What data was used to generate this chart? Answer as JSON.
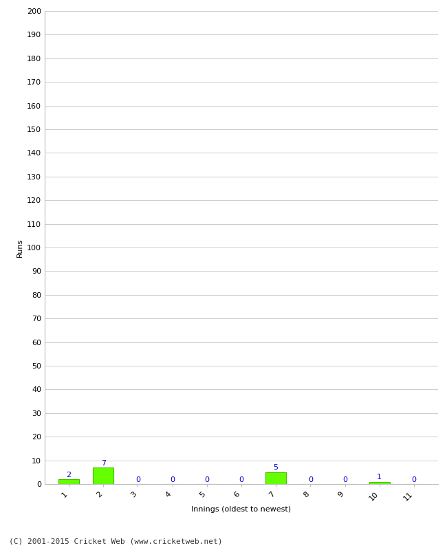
{
  "innings": [
    1,
    2,
    3,
    4,
    5,
    6,
    7,
    8,
    9,
    10,
    11
  ],
  "runs": [
    2,
    7,
    0,
    0,
    0,
    0,
    5,
    0,
    0,
    1,
    0
  ],
  "bar_color": "#66ff00",
  "bar_edge_color": "#44bb00",
  "label_color": "#0000cc",
  "ylabel": "Runs",
  "xlabel": "Innings (oldest to newest)",
  "footer": "(C) 2001-2015 Cricket Web (www.cricketweb.net)",
  "ylim": [
    0,
    200
  ],
  "yticks": [
    0,
    10,
    20,
    30,
    40,
    50,
    60,
    70,
    80,
    90,
    100,
    110,
    120,
    130,
    140,
    150,
    160,
    170,
    180,
    190,
    200
  ],
  "background_color": "#ffffff",
  "grid_color": "#cccccc",
  "label_fontsize": 8,
  "tick_fontsize": 8,
  "footer_fontsize": 8,
  "value_label_fontsize": 8
}
